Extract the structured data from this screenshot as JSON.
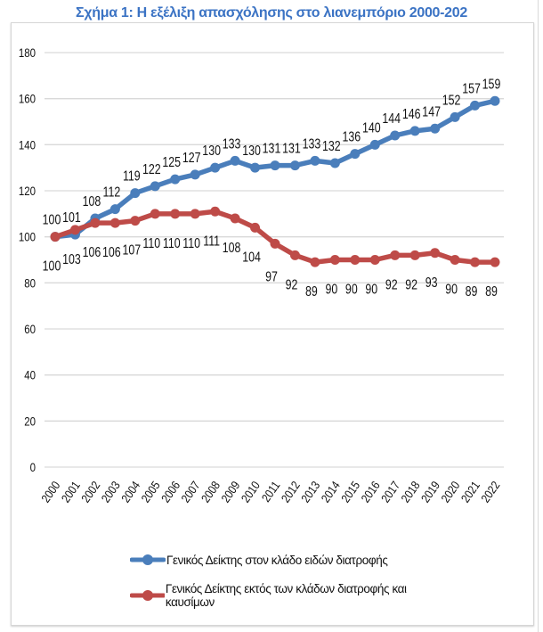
{
  "chart_data": {
    "type": "line",
    "title": "Σχήμα 1: Η εξέλιξη απασχόλησης στο λιανεμπόριο 2000-202",
    "xlabel": "",
    "ylabel": "",
    "x": [
      "2000",
      "2001",
      "2002",
      "2003",
      "2004",
      "2005",
      "2006",
      "2007",
      "2008",
      "2009",
      "2010",
      "2011",
      "2012",
      "2013",
      "2014",
      "2015",
      "2016",
      "2017",
      "2018",
      "2019",
      "2020",
      "2021",
      "2022"
    ],
    "ylim": [
      0,
      180
    ],
    "yticks": [
      0,
      20,
      40,
      60,
      80,
      100,
      120,
      140,
      160,
      180
    ],
    "grid": true,
    "legend_position": "bottom",
    "series": [
      {
        "name": "Γενικός Δείκτης στον κλάδο ειδών διατροφής",
        "color": "#4a7ebb",
        "label_position": "above",
        "values": [
          100,
          101,
          108,
          112,
          119,
          122,
          125,
          127,
          130,
          133,
          130,
          131,
          131,
          133,
          132,
          136,
          140,
          144,
          146,
          147,
          152,
          157,
          159
        ]
      },
      {
        "name": "Γενικός Δείκτης εκτός των κλάδων διατροφής και καυσίμων",
        "color": "#be4b48",
        "label_position": "below",
        "values": [
          100,
          103,
          106,
          106,
          107,
          110,
          110,
          110,
          111,
          108,
          104,
          97,
          92,
          89,
          90,
          90,
          90,
          92,
          92,
          93,
          90,
          89,
          89
        ]
      }
    ]
  }
}
